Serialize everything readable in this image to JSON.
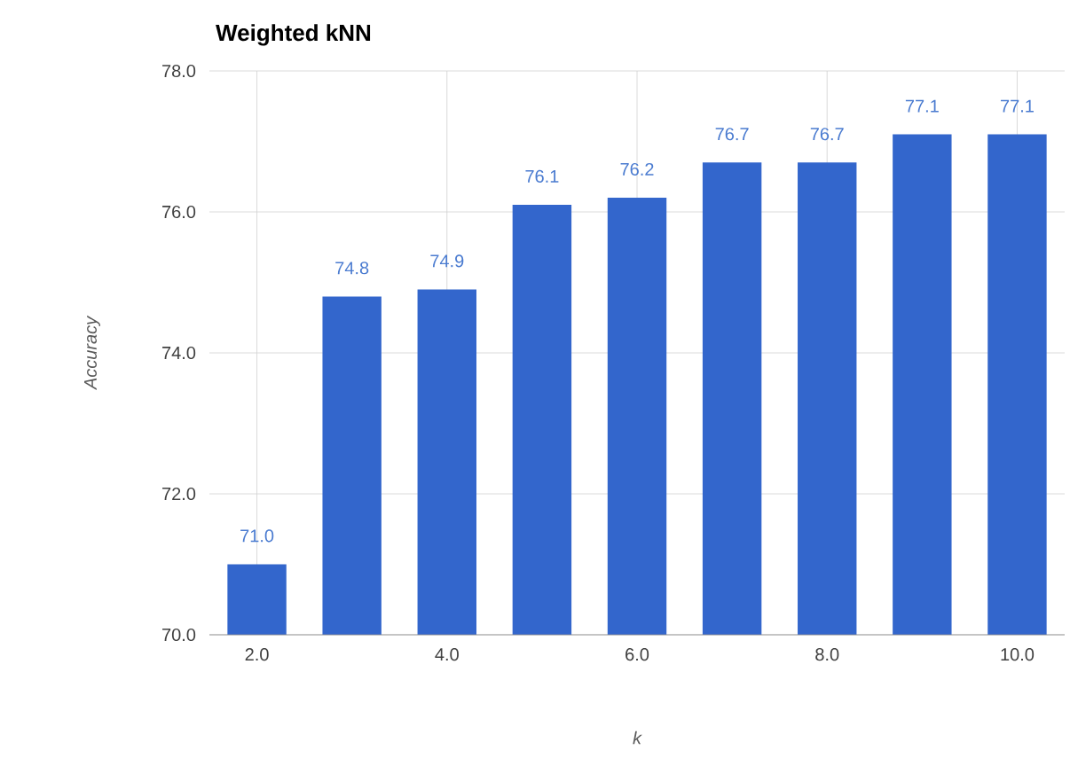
{
  "chart_data": {
    "type": "bar",
    "title": "Weighted kNN",
    "xlabel": "k",
    "ylabel": "Accuracy",
    "x": [
      2,
      3,
      4,
      5,
      6,
      7,
      8,
      9,
      10
    ],
    "values": [
      71.0,
      74.8,
      74.9,
      76.1,
      76.2,
      76.7,
      76.7,
      77.1,
      77.1
    ],
    "value_labels": [
      "71.0",
      "74.8",
      "74.9",
      "76.1",
      "76.2",
      "76.7",
      "76.7",
      "77.1",
      "77.1"
    ],
    "color": "#3366cc",
    "xlim": [
      1.5,
      10.5
    ],
    "xticks": [
      {
        "value": 2,
        "label": "2.0"
      },
      {
        "value": 4,
        "label": "4.0"
      },
      {
        "value": 6,
        "label": "6.0"
      },
      {
        "value": 8,
        "label": "8.0"
      },
      {
        "value": 10,
        "label": "10.0"
      }
    ],
    "ylim": [
      70,
      78
    ],
    "yticks": [
      {
        "value": 70,
        "label": "70.0"
      },
      {
        "value": 72,
        "label": "72.0"
      },
      {
        "value": 74,
        "label": "74.0"
      },
      {
        "value": 76,
        "label": "76.0"
      },
      {
        "value": 78,
        "label": "78.0"
      }
    ],
    "grid": true
  }
}
